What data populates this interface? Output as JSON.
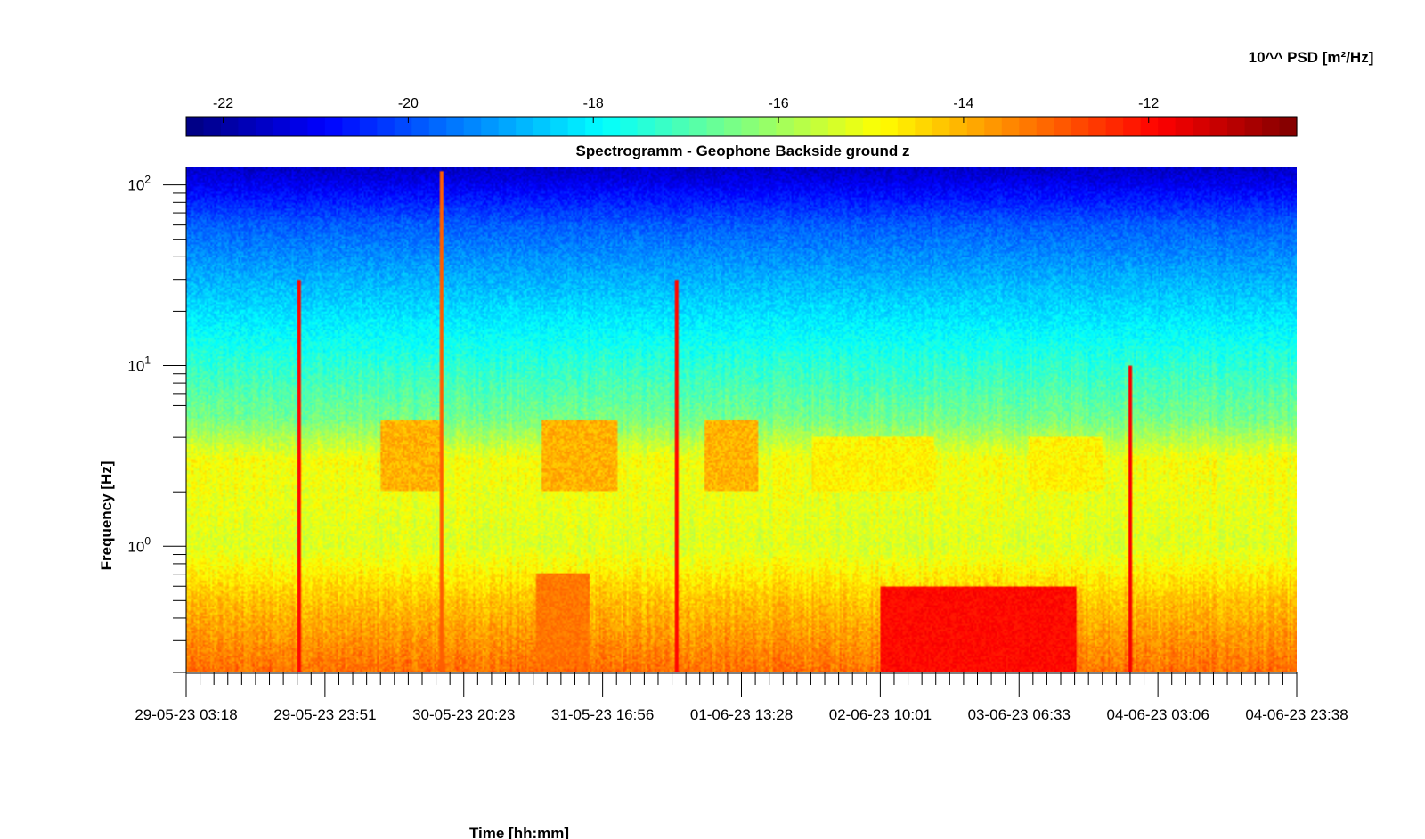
{
  "chart_data": {
    "type": "heatmap",
    "title": "Spectrogramm - Geophone Backside ground z",
    "xlabel": "Time [hh:mm]",
    "ylabel": "Frequency [Hz]",
    "colorbar_label": "10^^ PSD [m²/Hz]",
    "colormap": "jet",
    "colorbar_range": [
      -22.4,
      -10.4
    ],
    "colorbar_ticks": [
      -22,
      -20,
      -18,
      -16,
      -14,
      -12
    ],
    "colorbar_tick_labels": [
      "-22",
      "-20",
      "-18",
      "-16",
      "-14",
      "-12"
    ],
    "colorbar_position": "top",
    "y_scale": "log",
    "ylim": [
      0.2,
      125
    ],
    "y_ticks": [
      1,
      10,
      100
    ],
    "y_tick_labels": [
      {
        "base": "10",
        "exp": "0"
      },
      {
        "base": "10",
        "exp": "1"
      },
      {
        "base": "10",
        "exp": "2"
      }
    ],
    "x_tick_labels": [
      "29-05-23 03:18",
      "29-05-23 23:51",
      "30-05-23 20:23",
      "31-05-23 16:56",
      "01-06-23 13:28",
      "02-06-23 10:01",
      "03-06-23 06:33",
      "04-06-23 03:06",
      "04-06-23 23:38"
    ],
    "x_minor_per_major": 10,
    "bands": [
      {
        "freq_hz": 120,
        "log_psd": -21.5
      },
      {
        "freq_hz": 60,
        "log_psd": -19.8
      },
      {
        "freq_hz": 30,
        "log_psd": -18.8
      },
      {
        "freq_hz": 12,
        "log_psd": -17.6
      },
      {
        "freq_hz": 5,
        "log_psd": -16.5
      },
      {
        "freq_hz": 3,
        "log_psd": -15.0
      },
      {
        "freq_hz": 1,
        "log_psd": -15.3
      },
      {
        "freq_hz": 0.5,
        "log_psd": -14.2
      },
      {
        "freq_hz": 0.2,
        "log_psd": -13.2
      }
    ],
    "activity_bursts": [
      {
        "start": "30-05-23 08:00",
        "end": "30-05-23 17:00",
        "freq_range_hz": [
          2,
          5
        ],
        "log_psd": -14.0
      },
      {
        "start": "31-05-23 08:00",
        "end": "31-05-23 19:00",
        "freq_range_hz": [
          2,
          5
        ],
        "log_psd": -14.0
      },
      {
        "start": "01-06-23 08:00",
        "end": "01-06-23 16:00",
        "freq_range_hz": [
          2,
          5
        ],
        "log_psd": -14.0
      },
      {
        "start": "02-06-23 00:00",
        "end": "02-06-23 18:00",
        "freq_range_hz": [
          2,
          4
        ],
        "log_psd": -14.8
      },
      {
        "start": "03-06-23 08:00",
        "end": "03-06-23 19:00",
        "freq_range_hz": [
          2,
          4
        ],
        "log_psd": -14.8
      }
    ],
    "transients": [
      {
        "time": "29-05-23 20:00",
        "freq_range_hz": [
          0.2,
          30
        ],
        "log_psd": -12.0
      },
      {
        "time": "30-05-23 17:00",
        "freq_range_hz": [
          0.2,
          120
        ],
        "log_psd": -13.0
      },
      {
        "time": "01-06-23 04:00",
        "freq_range_hz": [
          0.2,
          30
        ],
        "log_psd": -12.0
      },
      {
        "time": "03-06-23 23:00",
        "freq_range_hz": [
          0.2,
          10
        ],
        "log_psd": -11.8
      }
    ],
    "low_freq_events": [
      {
        "start": "31-05-23 07:00",
        "end": "31-05-23 15:00",
        "freq_range_hz": [
          0.2,
          0.7
        ],
        "log_psd": -13.3
      },
      {
        "start": "02-06-23 10:00",
        "end": "03-06-23 15:00",
        "freq_range_hz": [
          0.2,
          0.6
        ],
        "log_psd": -12.0
      }
    ]
  }
}
